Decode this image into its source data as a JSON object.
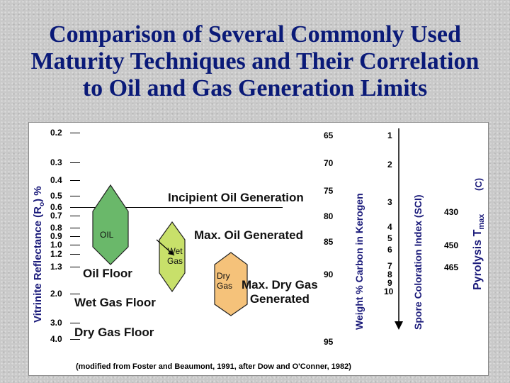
{
  "title": {
    "line1": "Comparison of Several Commonly Used",
    "line2": "Maturity Techniques and Their Correlation",
    "line3": "to Oil and Gas Generation Limits"
  },
  "axes": {
    "vitrinite": {
      "label_main": "Vitrinite Reflectance (R",
      "label_sub": "o",
      "label_end": ") %",
      "ticks": [
        "0.2",
        "0.3",
        "0.4",
        "0.5",
        "0.6",
        "0.7",
        "0.8",
        "0.9",
        "1.0",
        "1.2",
        "1.3",
        "2.0",
        "3.0",
        "4.0"
      ]
    },
    "carbon": {
      "label": "Weight % Carbon in Kerogen",
      "ticks": [
        "65",
        "70",
        "75",
        "80",
        "85",
        "90",
        "95"
      ]
    },
    "sci": {
      "label": "Spore Coloration Index (SCI)",
      "ticks": [
        "1",
        "2",
        "3",
        "4",
        "5",
        "6",
        "7",
        "8",
        "9",
        "10"
      ]
    },
    "tmax": {
      "label_main": "Pyrolysis T",
      "label_sub": "max",
      "unit": "(C)",
      "ticks": [
        "430",
        "450",
        "465"
      ]
    }
  },
  "zones": {
    "oil": "OIL",
    "wet_gas_line1": "Wet",
    "wet_gas_line2": "Gas",
    "dry_gas_line1": "Dry",
    "dry_gas_line2": "Gas"
  },
  "labels": {
    "incipient": "Incipient Oil Generation",
    "max_oil": "Max. Oil Generated",
    "oil_floor": "Oil Floor",
    "wet_gas_floor": "Wet Gas Floor",
    "dry_gas_floor": "Dry Gas Floor",
    "max_dry_gas_line1": "Max. Dry Gas",
    "max_dry_gas_line2": "Generated"
  },
  "colors": {
    "oil": "#6ab86a",
    "wet_gas": "#c8e06a",
    "dry_gas": "#f5c27a",
    "axis_label": "#1a1a7a"
  },
  "source_note": "(modified from Foster and Beaumont, 1991, after Dow and O'Conner, 1982)"
}
